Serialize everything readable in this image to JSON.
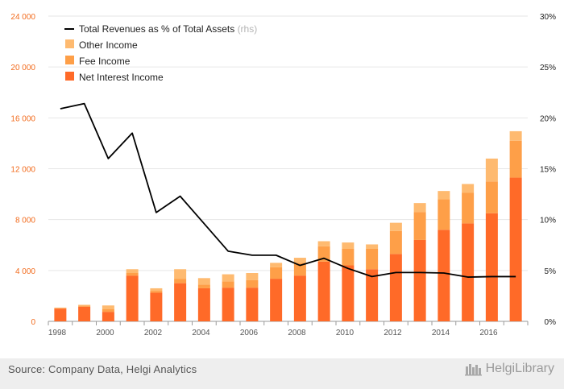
{
  "chart_data": {
    "type": "bar",
    "stacked": true,
    "x": [
      1998,
      1999,
      2000,
      2001,
      2002,
      2003,
      2004,
      2005,
      2006,
      2007,
      2008,
      2009,
      2010,
      2011,
      2012,
      2013,
      2014,
      2015,
      2016,
      2017
    ],
    "x_tick_labels": [
      "1998",
      "2000",
      "2002",
      "2004",
      "2006",
      "2008",
      "2010",
      "2012",
      "2014",
      "2016"
    ],
    "left_axis": {
      "ylim": [
        0,
        24000
      ],
      "ticks": [
        "0",
        "4 000",
        "8 000",
        "12 000",
        "16 000",
        "20 000",
        "24 000"
      ],
      "tick_values": [
        0,
        4000,
        8000,
        12000,
        16000,
        20000,
        24000
      ],
      "color": "#f26b1d"
    },
    "right_axis": {
      "ylim": [
        0,
        30
      ],
      "ticks": [
        "0%",
        "5%",
        "10%",
        "15%",
        "20%",
        "25%",
        "30%"
      ],
      "tick_values": [
        0,
        5,
        10,
        15,
        20,
        25,
        30
      ],
      "color": "#000000"
    },
    "grid": "horizontal",
    "legend_position": "top-left",
    "series": [
      {
        "name": "Net Interest Income",
        "kind": "bar",
        "color": "#ff6a28",
        "values": [
          1000,
          1150,
          750,
          3600,
          2250,
          3000,
          2600,
          2650,
          2650,
          3350,
          3600,
          4700,
          4400,
          4100,
          5300,
          6400,
          7200,
          7700,
          8500,
          11300
        ]
      },
      {
        "name": "Fee Income",
        "kind": "bar",
        "color": "#fe9f48",
        "values": [
          60,
          80,
          200,
          200,
          150,
          350,
          300,
          500,
          600,
          900,
          1000,
          1200,
          1300,
          1600,
          1800,
          2200,
          2400,
          2400,
          2500,
          2900
        ]
      },
      {
        "name": "Other Income",
        "kind": "bar",
        "color": "#feba70",
        "values": [
          20,
          70,
          300,
          300,
          200,
          750,
          500,
          550,
          550,
          350,
          400,
          400,
          500,
          350,
          650,
          700,
          650,
          700,
          1800,
          750
        ]
      },
      {
        "name": "Total Revenues as % of Total Assets",
        "name_suffix": "(rhs)",
        "kind": "line",
        "axis": "right",
        "color": "#000000",
        "values": [
          20.9,
          21.4,
          16.0,
          18.5,
          10.7,
          12.3,
          9.6,
          6.9,
          6.5,
          6.5,
          5.5,
          6.2,
          5.2,
          4.4,
          4.8,
          4.8,
          4.75,
          4.35,
          4.4,
          4.4
        ]
      }
    ]
  },
  "footer": {
    "source": "Source: Company Data, Helgi Analytics",
    "brand": "HelgiLibrary"
  }
}
